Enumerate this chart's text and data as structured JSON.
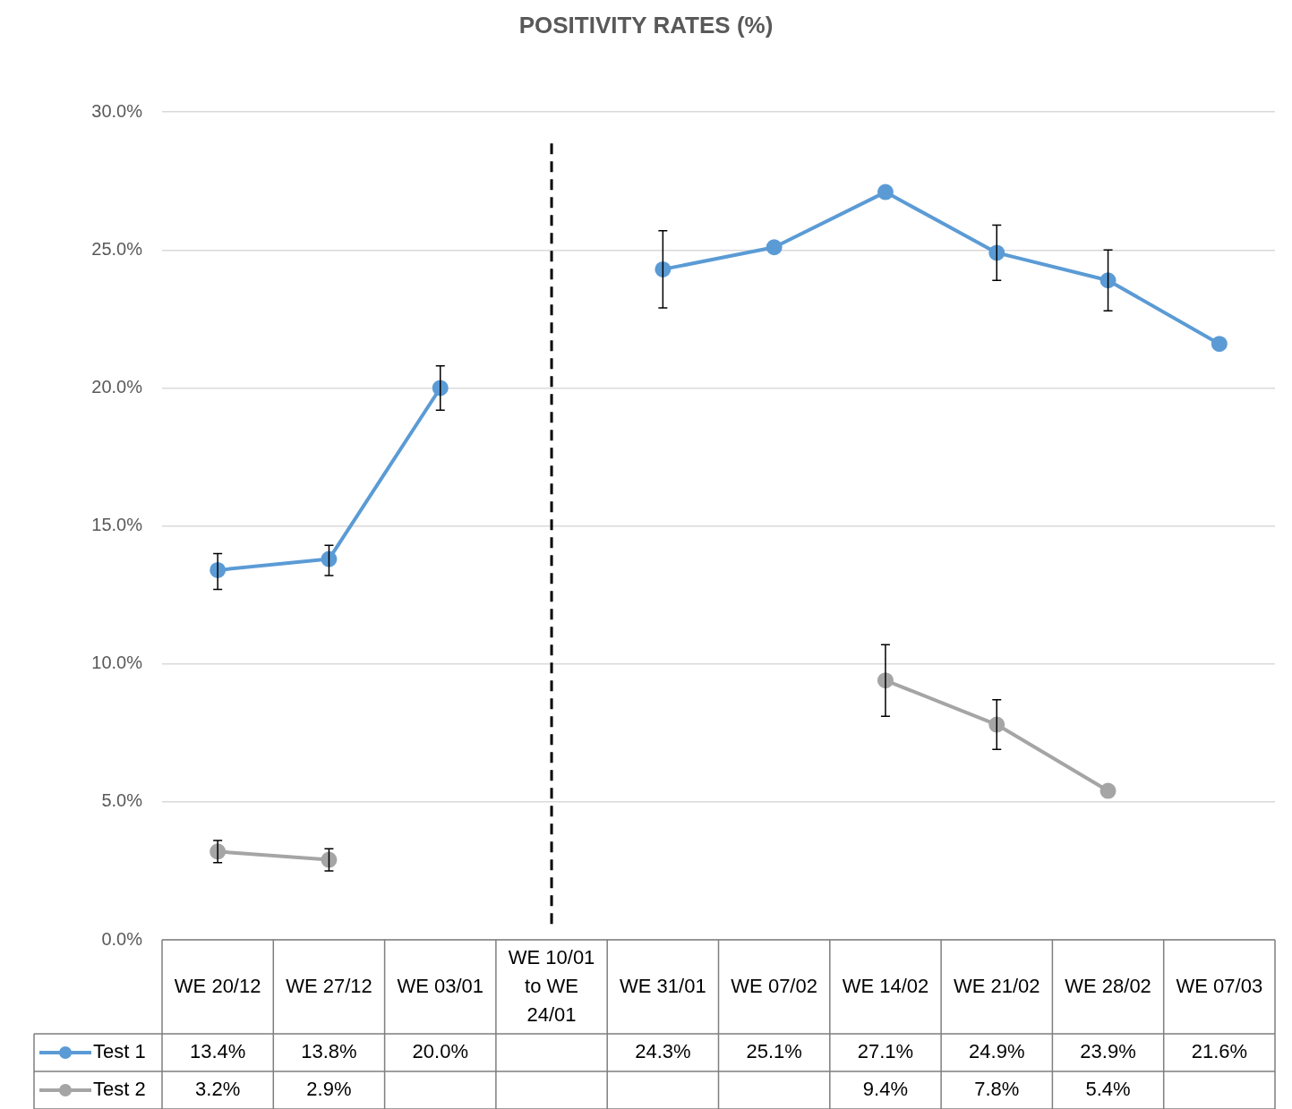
{
  "chart_data": {
    "type": "line",
    "title": "POSITIVITY RATES (%)",
    "categories": [
      "WE 20/12",
      "WE 27/12",
      "WE 03/01",
      "WE 10/01 to WE 24/01",
      "WE 31/01",
      "WE 07/02",
      "WE 14/02",
      "WE 21/02",
      "WE 28/02",
      "WE 07/03"
    ],
    "series": [
      {
        "name": "Test 1",
        "color": "#5b9bd5",
        "values": [
          13.4,
          13.8,
          20.0,
          null,
          24.3,
          25.1,
          27.1,
          24.9,
          23.9,
          21.6
        ],
        "errors": [
          [
            12.7,
            14.0
          ],
          [
            13.2,
            14.3
          ],
          [
            19.2,
            20.8
          ],
          null,
          [
            22.9,
            25.7
          ],
          null,
          null,
          [
            23.9,
            25.9
          ],
          [
            22.8,
            25.0
          ],
          null
        ],
        "value_labels": [
          "13.4%",
          "13.8%",
          "20.0%",
          null,
          "24.3%",
          "25.1%",
          "27.1%",
          "24.9%",
          "23.9%",
          "21.6%"
        ]
      },
      {
        "name": "Test 2",
        "color": "#a5a5a5",
        "values": [
          3.2,
          2.9,
          null,
          null,
          null,
          null,
          9.4,
          7.8,
          5.4,
          null
        ],
        "errors": [
          [
            2.8,
            3.6
          ],
          [
            2.5,
            3.3
          ],
          null,
          null,
          null,
          null,
          [
            8.1,
            10.7
          ],
          [
            6.9,
            8.7
          ],
          null,
          null
        ],
        "value_labels": [
          "3.2%",
          "2.9%",
          null,
          null,
          null,
          null,
          "9.4%",
          "7.8%",
          "5.4%",
          null
        ]
      }
    ],
    "ylim": [
      0,
      30
    ],
    "yticks": [
      {
        "value": 0,
        "label": "0.0%"
      },
      {
        "value": 5,
        "label": "5.0%"
      },
      {
        "value": 10,
        "label": "10.0%"
      },
      {
        "value": 15,
        "label": "15.0%"
      },
      {
        "value": 20,
        "label": "20.0%"
      },
      {
        "value": 25,
        "label": "25.0%"
      },
      {
        "value": 30,
        "label": "30.0%"
      }
    ],
    "ref_lines": [
      {
        "axis": "x",
        "value": "WE 10/01 to WE 24/01",
        "color": "#000000",
        "line_style": "dashed"
      }
    ],
    "grid": "y",
    "legend": "bottom",
    "marker": "circle",
    "line_style": "solid"
  }
}
